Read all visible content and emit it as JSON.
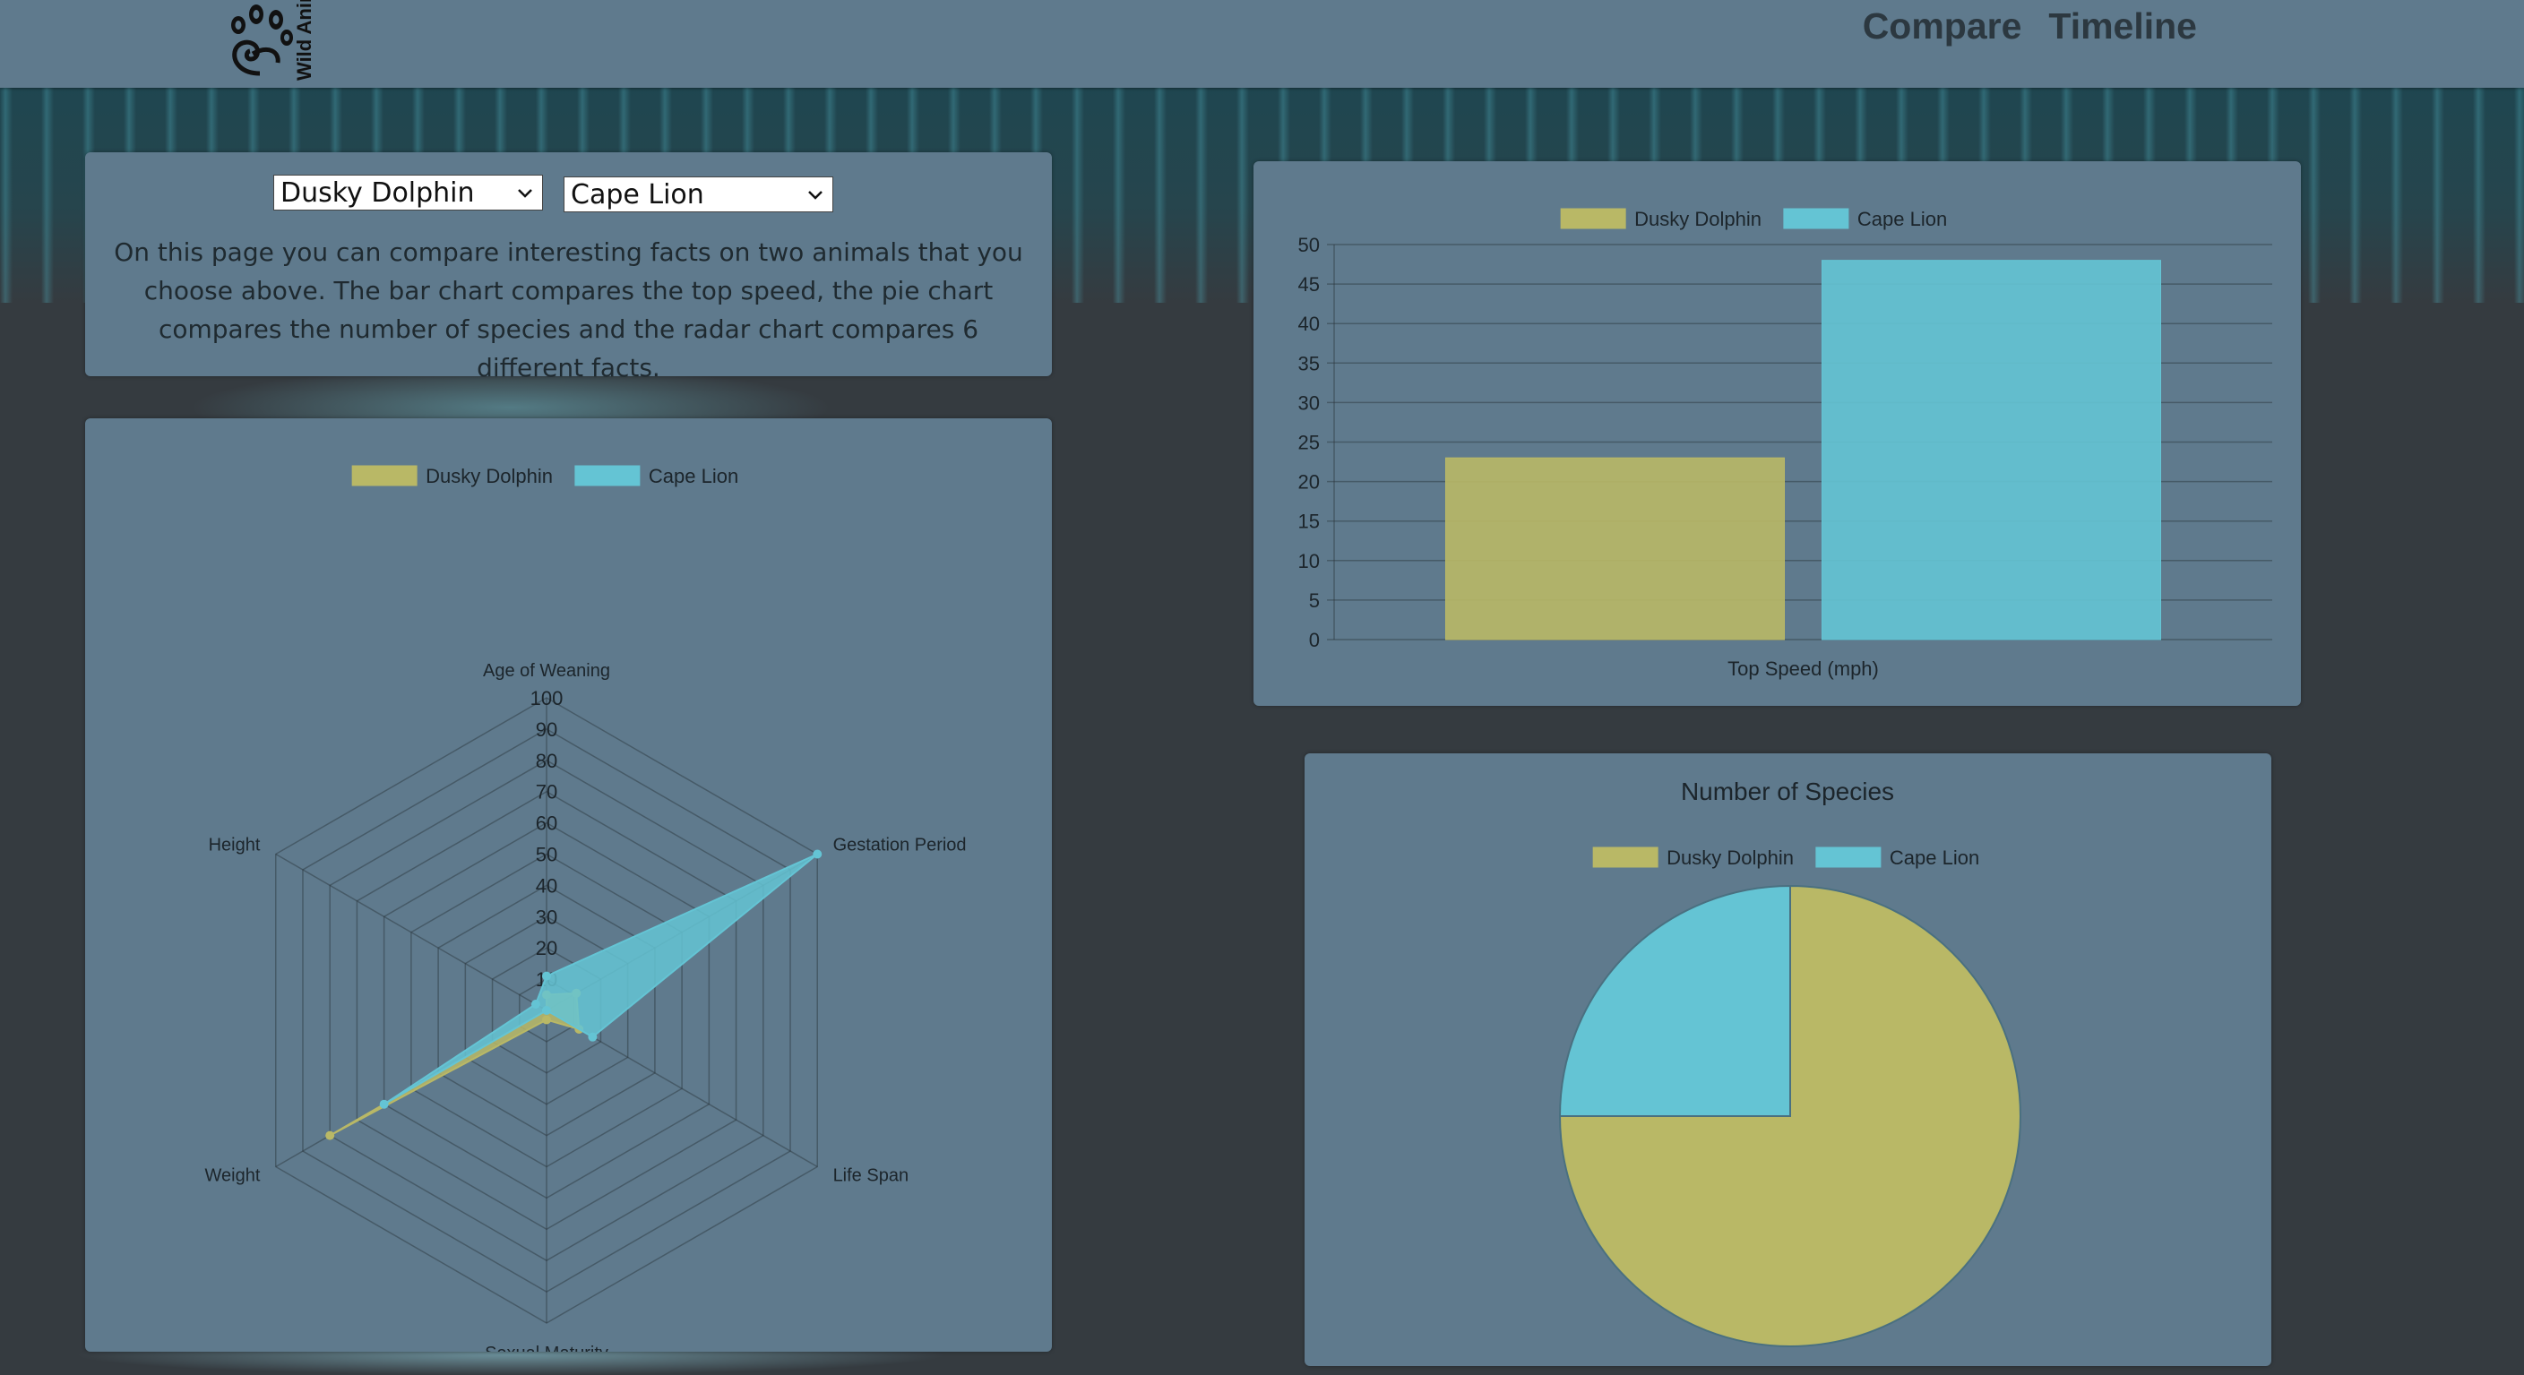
{
  "header": {
    "logo_text": "Wild Animals",
    "nav": [
      "Compare",
      "Timeline"
    ]
  },
  "controls": {
    "select_a": {
      "value": "Dusky Dolphin"
    },
    "select_b": {
      "value": "Cape Lion"
    },
    "description": "On this page you can compare interesting facts on two animals that you choose above. The bar chart compares the top speed, the pie chart compares the number of species and the radar chart compares 6 different facts."
  },
  "colors": {
    "dusky_dolphin": "#b9b866",
    "cape_lion": "#64c4d4",
    "panel": "#5f7a8d",
    "header": "#5f7a8d"
  },
  "chart_data": [
    {
      "type": "radar",
      "legend": [
        "Dusky Dolphin",
        "Cape Lion"
      ],
      "axes": [
        "Age of Weaning",
        "Gestation Period",
        "Life Span",
        "Sexual Maturity",
        "Weight",
        "Height"
      ],
      "r_ticks": [
        10,
        20,
        30,
        40,
        50,
        60,
        70,
        80,
        90,
        100
      ],
      "rlim": [
        0,
        100
      ],
      "series": [
        {
          "name": "Dusky Dolphin",
          "values": [
            5,
            11,
            12,
            3,
            80,
            0
          ]
        },
        {
          "name": "Cape Lion",
          "values": [
            11,
            100,
            17,
            0,
            60,
            4
          ]
        }
      ]
    },
    {
      "type": "bar",
      "legend": [
        "Dusky Dolphin",
        "Cape Lion"
      ],
      "xlabel": "Top Speed (mph)",
      "ylim": [
        0,
        50
      ],
      "y_ticks": [
        0,
        5,
        10,
        15,
        20,
        25,
        30,
        35,
        40,
        45,
        50
      ],
      "series": [
        {
          "name": "Dusky Dolphin",
          "values": [
            23
          ]
        },
        {
          "name": "Cape Lion",
          "values": [
            48
          ]
        }
      ]
    },
    {
      "type": "pie",
      "title": "Number of Species",
      "legend": [
        "Dusky Dolphin",
        "Cape Lion"
      ],
      "series": [
        {
          "name": "Dusky Dolphin",
          "values": [
            3
          ]
        },
        {
          "name": "Cape Lion",
          "values": [
            1
          ]
        }
      ]
    }
  ]
}
